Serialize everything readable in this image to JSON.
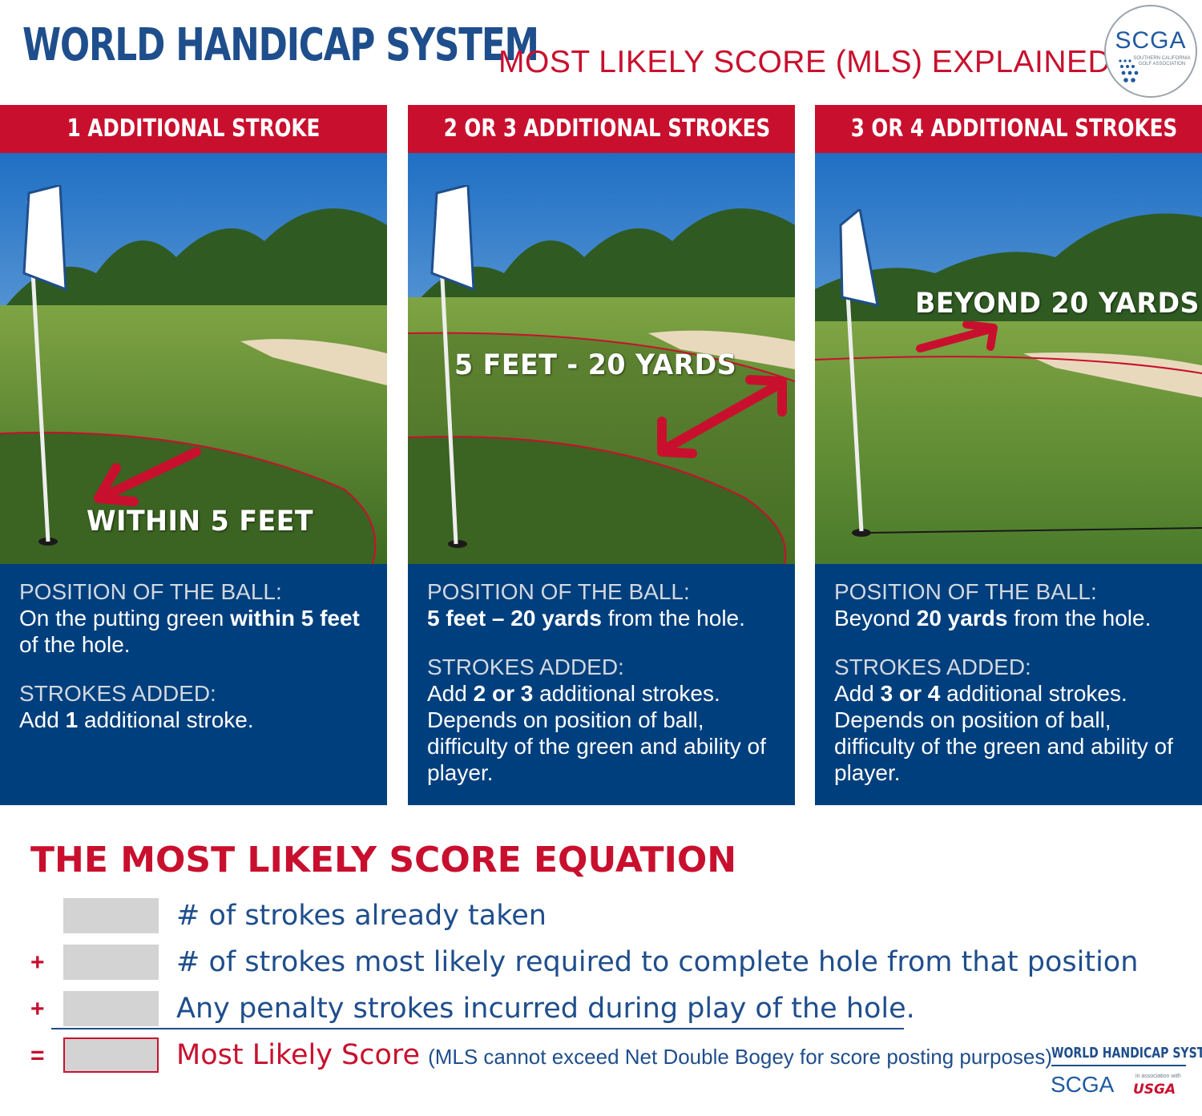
{
  "header": {
    "title": "WORLD HANDICAP SYSTEM",
    "subtitle": "MOST LIKELY SCORE (MLS) EXPLAINED",
    "logo_text": "SCGA",
    "logo_subtext": "SOUTHERN CALIFORNIA GOLF ASSOCIATION"
  },
  "panels": [
    {
      "header": "1 ADDITIONAL STROKE",
      "photo_label": "WITHIN 5 FEET",
      "position_label": "POSITION OF THE BALL:",
      "position_pre": "On the putting green ",
      "position_bold": "within 5 feet",
      "position_post": " of the hole.",
      "strokes_label": "STROKES ADDED:",
      "strokes_pre": "Add ",
      "strokes_bold": "1",
      "strokes_post": " additional stroke.",
      "strokes_note": ""
    },
    {
      "header": "2 OR 3 ADDITIONAL STROKES",
      "photo_label": "5 FEET - 20 YARDS",
      "position_label": "POSITION OF THE BALL:",
      "position_pre": "",
      "position_bold": "5 feet – 20 yards",
      "position_post": " from the hole.",
      "strokes_label": "STROKES ADDED:",
      "strokes_pre": "Add ",
      "strokes_bold": "2 or 3",
      "strokes_post": " additional strokes.",
      "strokes_note": "Depends on position of ball, difficulty of the green and ability of player."
    },
    {
      "header": "3 OR 4 ADDITIONAL STROKES",
      "photo_label": "BEYOND 20 YARDS",
      "position_label": "POSITION OF THE BALL:",
      "position_pre": "Beyond ",
      "position_bold": "20 yards",
      "position_post": " from the hole.",
      "strokes_label": "STROKES ADDED:",
      "strokes_pre": "Add ",
      "strokes_bold": "3 or 4",
      "strokes_post": " additional strokes.",
      "strokes_note": "Depends on position of ball, difficulty of the green and ability of player."
    }
  ],
  "equation": {
    "title": "THE MOST LIKELY SCORE EQUATION",
    "rows": [
      {
        "op": "",
        "text": "# of strokes already taken"
      },
      {
        "op": "+",
        "text": "# of strokes most likely required to complete hole from that position"
      },
      {
        "op": "+",
        "text": "Any penalty strokes incurred during play of the hole."
      },
      {
        "op": "=",
        "text": "Most Likely Score",
        "note": "(MLS cannot exceed Net Double Bogey for score posting purposes)"
      }
    ]
  },
  "footer": {
    "whs": "WORLD HANDICAP SYSTEM",
    "scga": "SCGA",
    "assoc": "in association with",
    "usga": "USGA"
  },
  "colors": {
    "navy": "#003f7d",
    "title_blue": "#1f4e8c",
    "red": "#c8102e",
    "box_gray": "#d3d3d3",
    "green": "#4f7a2a"
  },
  "icons": [
    "flag-icon",
    "arrow-icon",
    "golf-ball-icon"
  ]
}
